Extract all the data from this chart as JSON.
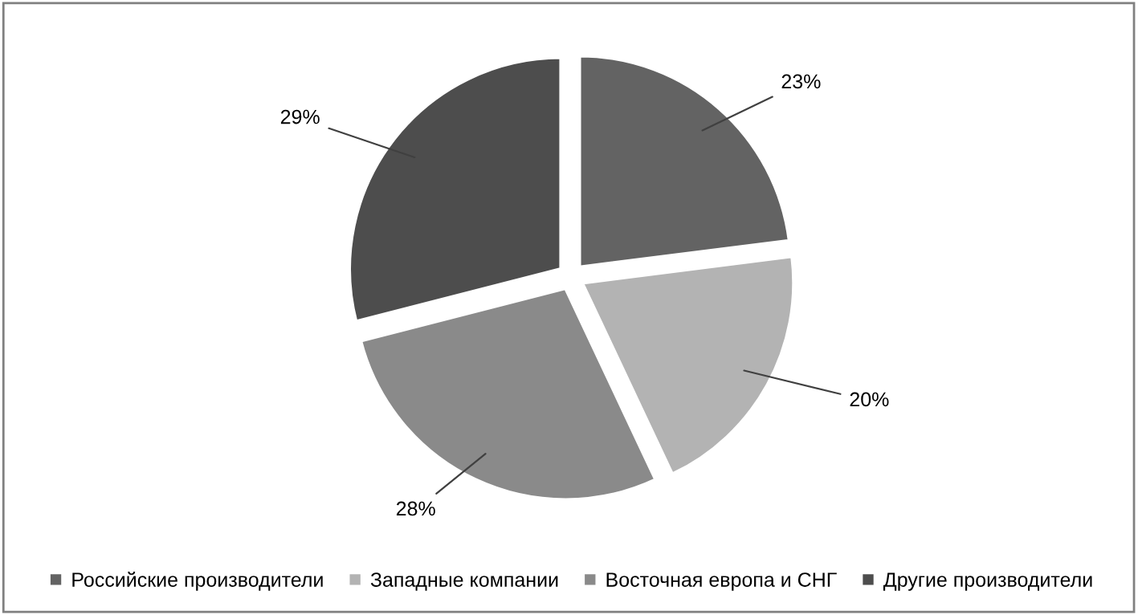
{
  "chart_data": {
    "type": "pie",
    "categories": [
      "Российские производители",
      "Западные компании",
      "Восточная европа и СНГ",
      "Другие производители"
    ],
    "values": [
      23,
      20,
      28,
      29
    ],
    "colors": [
      "#636363",
      "#b3b3b3",
      "#8a8a8a",
      "#4d4d4d"
    ],
    "value_labels": [
      "23%",
      "20%",
      "28%",
      "29%"
    ],
    "legend": "bottom"
  }
}
